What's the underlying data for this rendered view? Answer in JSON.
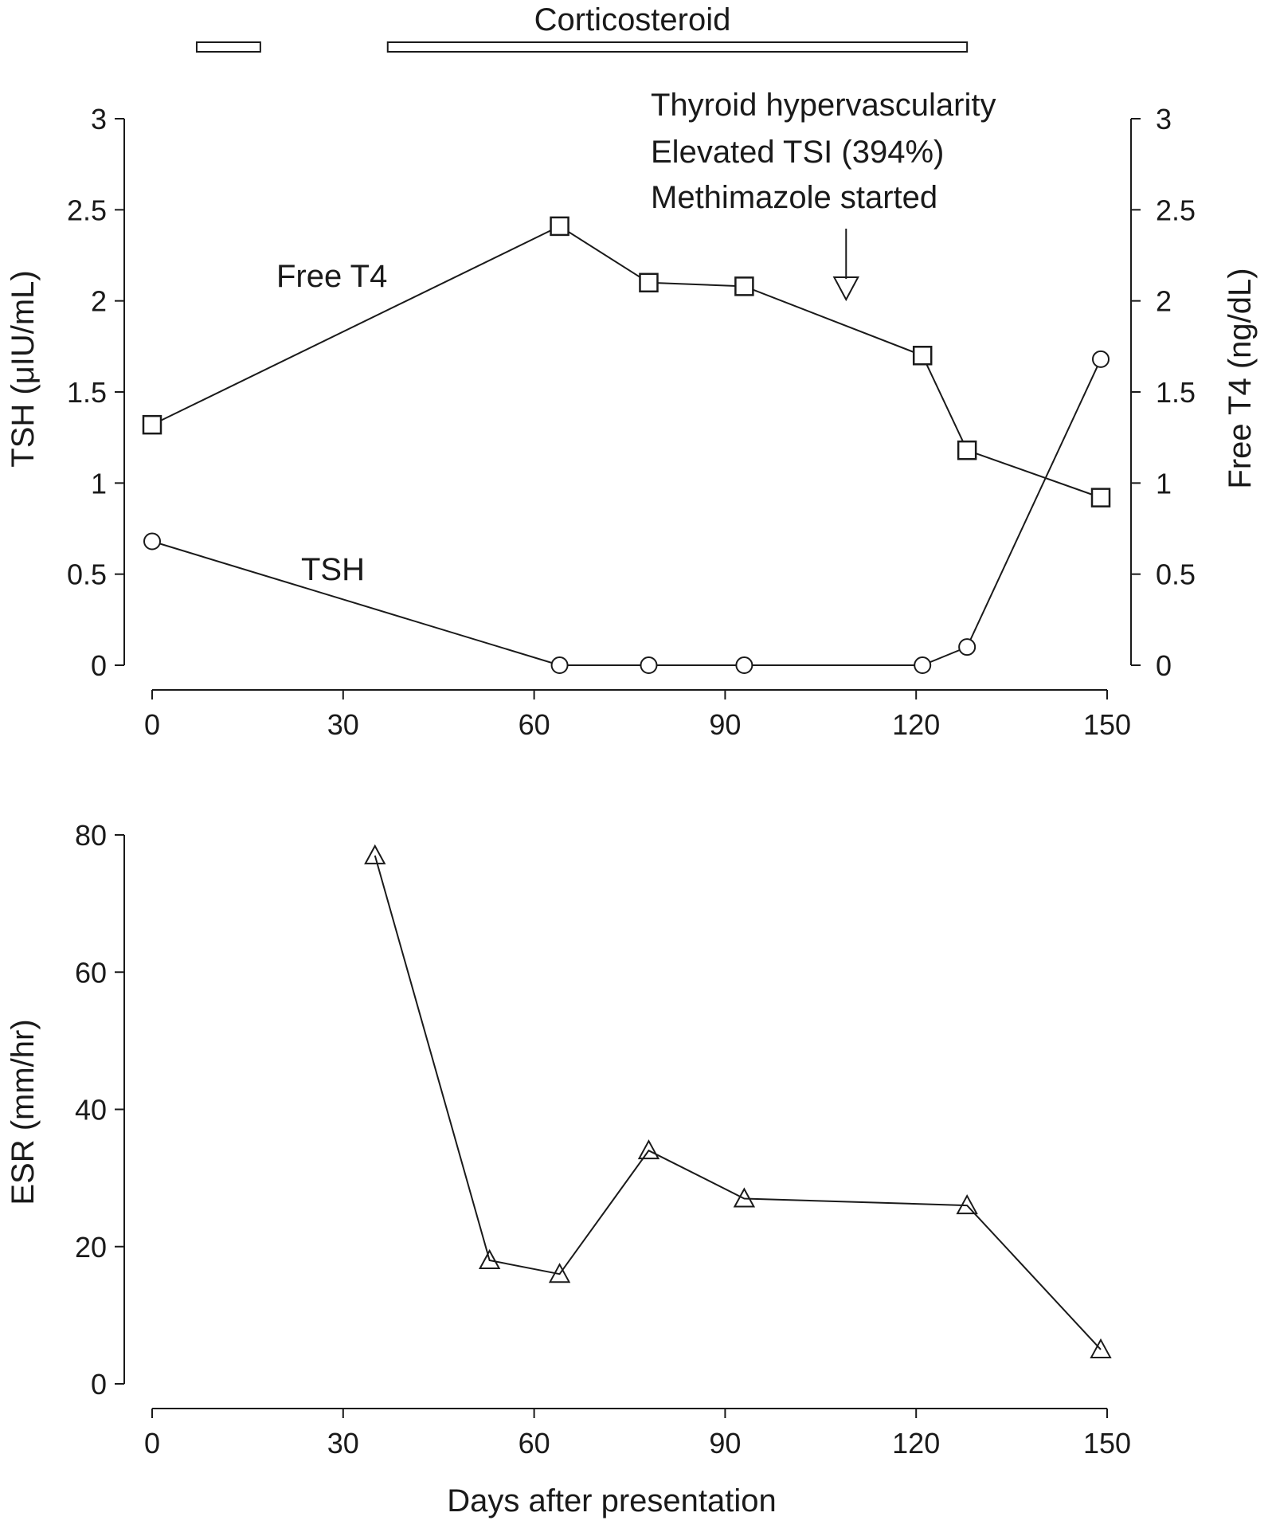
{
  "chart_data": [
    {
      "type": "line",
      "xlabel": "",
      "ylabel": "TSH (μIU/mL)",
      "ylabel_right": "Free T4 (ng/dL)",
      "xlim": [
        0,
        150
      ],
      "ylim": [
        0,
        3
      ],
      "ylim_right": [
        0,
        3
      ],
      "x_ticks": [
        "0",
        "30",
        "60",
        "90",
        "120",
        "150"
      ],
      "y_ticks": [
        "0",
        "0.5",
        "1",
        "1.5",
        "2",
        "2.5",
        "3"
      ],
      "y_ticks_right": [
        "0",
        "0.5",
        "1",
        "1.5",
        "2",
        "2.5",
        "3"
      ],
      "grid": false,
      "series": [
        {
          "name": "Free T4",
          "axis": "right",
          "marker": "square",
          "x": [
            0,
            64,
            78,
            93,
            121,
            128,
            149
          ],
          "y": [
            1.32,
            2.41,
            2.1,
            2.08,
            1.7,
            1.18,
            0.92
          ]
        },
        {
          "name": "TSH",
          "axis": "left",
          "marker": "circle",
          "x": [
            0,
            64,
            78,
            93,
            121,
            128,
            149
          ],
          "y": [
            0.68,
            0,
            0,
            0,
            0,
            0.1,
            1.68
          ]
        }
      ],
      "treatment": {
        "label": "Corticosteroid",
        "periods": [
          [
            7,
            17
          ],
          [
            37,
            128
          ]
        ]
      },
      "annotation": {
        "lines": [
          "Thyroid hypervascularity",
          "Elevated TSI (394%)",
          "Methimazole started"
        ],
        "arrow_x": 109
      }
    },
    {
      "type": "line",
      "xlabel": "Days after presentation",
      "ylabel": "ESR (mm/hr)",
      "xlim": [
        0,
        150
      ],
      "ylim": [
        0,
        80
      ],
      "x_ticks": [
        "0",
        "30",
        "60",
        "90",
        "120",
        "150"
      ],
      "y_ticks": [
        "0",
        "20",
        "40",
        "60",
        "80"
      ],
      "grid": false,
      "series": [
        {
          "marker": "triangle",
          "x": [
            35,
            53,
            64,
            78,
            93,
            128,
            149
          ],
          "y": [
            77,
            18,
            16,
            34,
            27,
            26,
            5
          ]
        }
      ]
    }
  ]
}
